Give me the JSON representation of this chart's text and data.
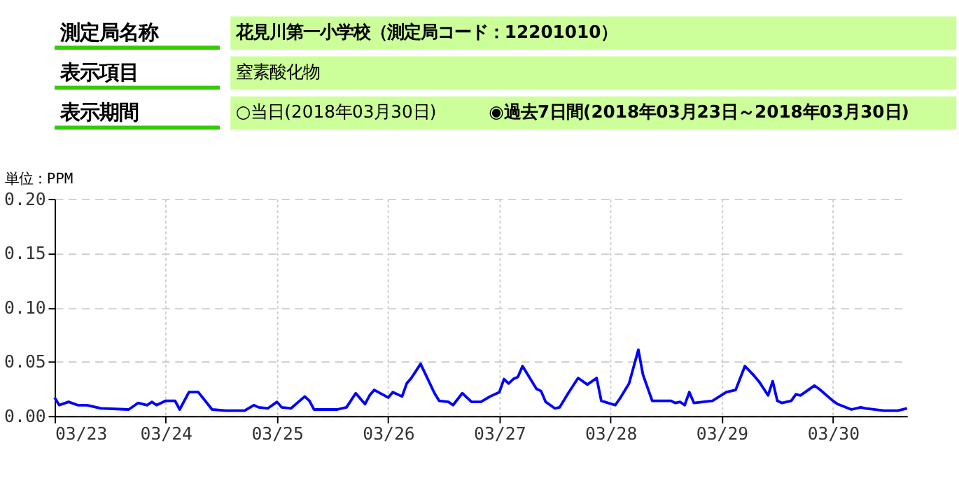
{
  "chart_data": {
    "type": "line",
    "annotations": [
      "測定局名称",
      "花見川第一小学校（測定局コード：12201010）",
      "表示項目",
      "窒素酸化物",
      "表示期間",
      "○当日(2018年03月30日)",
      "◉過去7日間(2018年03月23日～2018年03月30日)"
    ],
    "ylabel": "単位：PPM",
    "x": [
      "2018-03-23T00:00",
      "2018-03-23T01:00",
      "2018-03-23T03:00",
      "2018-03-23T05:00",
      "2018-03-23T07:00",
      "2018-03-23T09:00",
      "2018-03-23T10:00",
      "2018-03-23T16:00",
      "2018-03-23T18:00",
      "2018-03-23T20:00",
      "2018-03-23T21:00",
      "2018-03-23T22:00",
      "2018-03-24T00:00",
      "2018-03-24T02:00",
      "2018-03-24T03:00",
      "2018-03-24T05:00",
      "2018-03-24T07:00",
      "2018-03-24T10:00",
      "2018-03-24T13:00",
      "2018-03-24T17:00",
      "2018-03-24T19:00",
      "2018-03-24T20:00",
      "2018-03-24T22:00",
      "2018-03-25T00:00",
      "2018-03-25T01:00",
      "2018-03-25T03:00",
      "2018-03-25T06:00",
      "2018-03-25T07:00",
      "2018-03-25T08:00",
      "2018-03-25T13:00",
      "2018-03-25T15:00",
      "2018-03-25T17:00",
      "2018-03-25T19:00",
      "2018-03-25T20:00",
      "2018-03-25T21:00",
      "2018-03-26T00:00",
      "2018-03-26T01:00",
      "2018-03-26T03:00",
      "2018-03-26T04:00",
      "2018-03-26T05:00",
      "2018-03-26T07:00",
      "2018-03-26T10:00",
      "2018-03-26T11:00",
      "2018-03-26T13:00",
      "2018-03-26T14:00",
      "2018-03-26T16:00",
      "2018-03-26T18:00",
      "2018-03-26T20:00",
      "2018-03-26T22:00",
      "2018-03-27T00:00",
      "2018-03-27T01:00",
      "2018-03-27T02:00",
      "2018-03-27T03:00",
      "2018-03-27T04:00",
      "2018-03-27T05:00",
      "2018-03-27T08:00",
      "2018-03-27T09:00",
      "2018-03-27T10:00",
      "2018-03-27T12:00",
      "2018-03-27T13:00",
      "2018-03-27T15:00",
      "2018-03-27T17:00",
      "2018-03-27T19:00",
      "2018-03-27T21:00",
      "2018-03-27T22:00",
      "2018-03-28T01:00",
      "2018-03-28T02:00",
      "2018-03-28T04:00",
      "2018-03-28T06:00",
      "2018-03-28T07:00",
      "2018-03-28T09:00",
      "2018-03-28T13:00",
      "2018-03-28T14:00",
      "2018-03-28T15:00",
      "2018-03-28T16:00",
      "2018-03-28T17:00",
      "2018-03-28T18:00",
      "2018-03-28T22:00",
      "2018-03-29T01:00",
      "2018-03-29T03:00",
      "2018-03-29T05:00",
      "2018-03-29T07:00",
      "2018-03-29T08:00",
      "2018-03-29T10:00",
      "2018-03-29T11:00",
      "2018-03-29T12:00",
      "2018-03-29T13:00",
      "2018-03-29T15:00",
      "2018-03-29T16:00",
      "2018-03-29T17:00",
      "2018-03-29T20:00",
      "2018-03-29T21:00",
      "2018-03-30T00:00",
      "2018-03-30T01:00",
      "2018-03-30T04:00",
      "2018-03-30T06:00",
      "2018-03-30T07:00",
      "2018-03-30T11:00",
      "2018-03-30T14:00",
      "2018-03-30T16:00"
    ],
    "series": [
      {
        "color": "#0000ff",
        "values": [
          0.017,
          0.01,
          0.013,
          0.01,
          0.01,
          0.008,
          0.007,
          0.006,
          0.012,
          0.01,
          0.013,
          0.01,
          0.014,
          0.014,
          0.006,
          0.022,
          0.022,
          0.006,
          0.005,
          0.005,
          0.01,
          0.008,
          0.007,
          0.013,
          0.008,
          0.007,
          0.018,
          0.014,
          0.006,
          0.006,
          0.008,
          0.021,
          0.011,
          0.019,
          0.024,
          0.017,
          0.022,
          0.018,
          0.03,
          0.035,
          0.048,
          0.021,
          0.014,
          0.013,
          0.01,
          0.021,
          0.013,
          0.013,
          0.018,
          0.022,
          0.034,
          0.03,
          0.034,
          0.036,
          0.046,
          0.025,
          0.023,
          0.013,
          0.007,
          0.008,
          0.022,
          0.035,
          0.029,
          0.035,
          0.014,
          0.01,
          0.016,
          0.03,
          0.061,
          0.038,
          0.014,
          0.014,
          0.012,
          0.013,
          0.01,
          0.022,
          0.012,
          0.014,
          0.022,
          0.024,
          0.046,
          0.037,
          0.032,
          0.019,
          0.032,
          0.014,
          0.012,
          0.014,
          0.02,
          0.019,
          0.028,
          0.025,
          0.014,
          0.011,
          0.006,
          0.008,
          0.007,
          0.005,
          0.005,
          0.007
        ]
      }
    ],
    "xlim": [
      "2018-03-23T00:00",
      "2018-03-30T16:00"
    ],
    "xticks": [
      {
        "value": "2018-03-23",
        "label": "03/23"
      },
      {
        "value": "2018-03-24",
        "label": "03/24"
      },
      {
        "value": "2018-03-25",
        "label": "03/25"
      },
      {
        "value": "2018-03-26",
        "label": "03/26"
      },
      {
        "value": "2018-03-27",
        "label": "03/27"
      },
      {
        "value": "2018-03-28",
        "label": "03/28"
      },
      {
        "value": "2018-03-29",
        "label": "03/29"
      },
      {
        "value": "2018-03-30",
        "label": "03/30"
      }
    ],
    "ylim": [
      0,
      0.2
    ],
    "yticks": [
      {
        "value": 0,
        "label": "0.00"
      },
      {
        "value": 0.05,
        "label": "0.05"
      },
      {
        "value": 0.1,
        "label": "0.10"
      },
      {
        "value": 0.15,
        "label": "0.15"
      },
      {
        "value": 0.2,
        "label": "0.20"
      }
    ],
    "grid": true,
    "marker": "none",
    "line_style": "solid"
  }
}
